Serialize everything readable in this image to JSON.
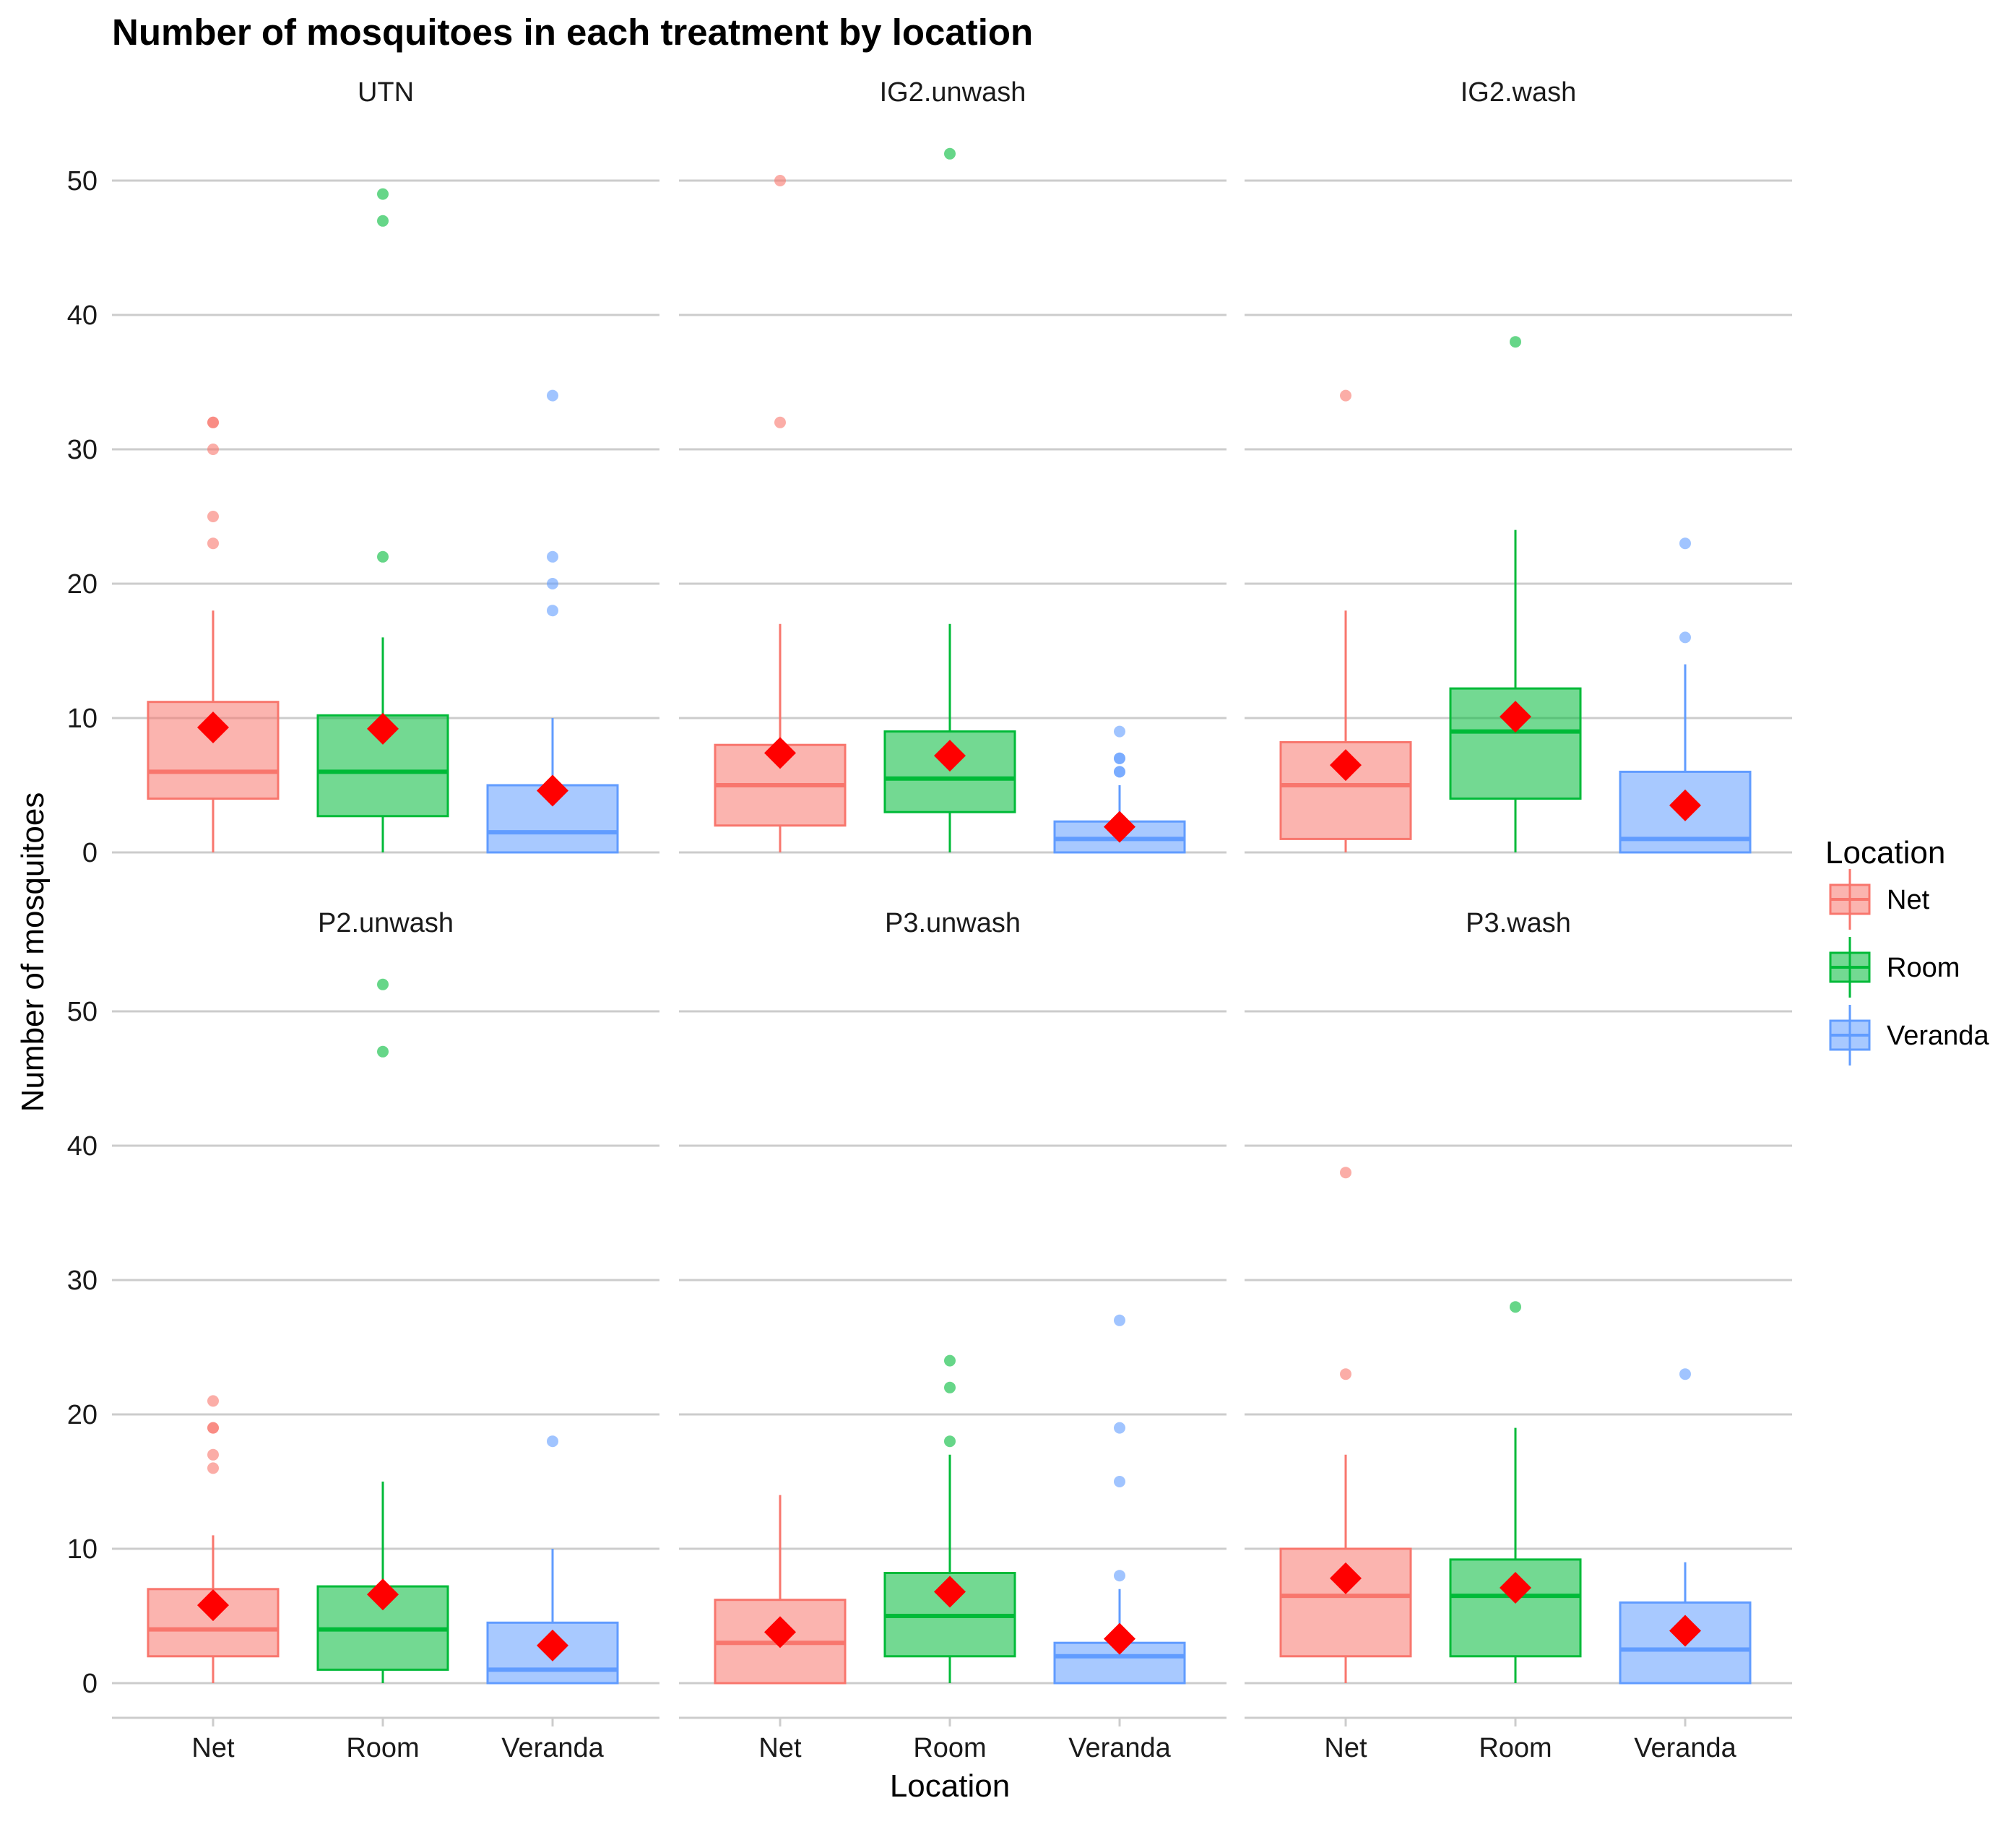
{
  "chart_data": {
    "type": "boxplot",
    "title": "Number of mosquitoes in each treatment by location",
    "xlabel": "Location",
    "ylabel": "Number of mosquitoes",
    "categories": [
      "Net",
      "Room",
      "Veranda"
    ],
    "ylim": [
      0,
      55
    ],
    "yticks": [
      0,
      10,
      20,
      30,
      40,
      50
    ],
    "grid": "horizontal",
    "legend": {
      "title": "Location",
      "position": "right",
      "entries": [
        {
          "name": "Net",
          "color": "#F8766D"
        },
        {
          "name": "Room",
          "color": "#00BA38"
        },
        {
          "name": "Veranda",
          "color": "#619CFF"
        }
      ]
    },
    "mean_marker": {
      "shape": "diamond",
      "color": "#FF0000"
    },
    "panels": [
      {
        "name": "UTN",
        "boxes": [
          {
            "location": "Net",
            "min": 0,
            "q1": 4,
            "median": 6,
            "q3": 11.2,
            "max": 18,
            "mean": 9.3,
            "outliers": [
              23,
              25,
              30,
              32,
              32
            ]
          },
          {
            "location": "Room",
            "min": 0,
            "q1": 2.7,
            "median": 6,
            "q3": 10.2,
            "max": 16,
            "mean": 9.2,
            "outliers": [
              22,
              47,
              49
            ]
          },
          {
            "location": "Veranda",
            "min": 0,
            "q1": 0,
            "median": 1.5,
            "q3": 5,
            "max": 10,
            "mean": 4.6,
            "outliers": [
              18,
              20,
              22,
              34
            ]
          }
        ]
      },
      {
        "name": "IG2.unwash",
        "boxes": [
          {
            "location": "Net",
            "min": 0,
            "q1": 2,
            "median": 5,
            "q3": 8,
            "max": 17,
            "mean": 7.4,
            "outliers": [
              32,
              50
            ]
          },
          {
            "location": "Room",
            "min": 0,
            "q1": 3,
            "median": 5.5,
            "q3": 9,
            "max": 17,
            "mean": 7.2,
            "outliers": [
              52
            ]
          },
          {
            "location": "Veranda",
            "min": 0,
            "q1": 0,
            "median": 1,
            "q3": 2.3,
            "max": 5,
            "mean": 1.9,
            "outliers": [
              6,
              6,
              7,
              7,
              9
            ]
          }
        ]
      },
      {
        "name": "IG2.wash",
        "boxes": [
          {
            "location": "Net",
            "min": 0,
            "q1": 1,
            "median": 5,
            "q3": 8.2,
            "max": 18,
            "mean": 6.5,
            "outliers": [
              34
            ]
          },
          {
            "location": "Room",
            "min": 0,
            "q1": 4,
            "median": 9,
            "q3": 12.2,
            "max": 24,
            "mean": 10.1,
            "outliers": [
              38
            ]
          },
          {
            "location": "Veranda",
            "min": 0,
            "q1": 0,
            "median": 1,
            "q3": 6,
            "max": 14,
            "mean": 3.5,
            "outliers": [
              16,
              23
            ]
          }
        ]
      },
      {
        "name": "P2.unwash",
        "boxes": [
          {
            "location": "Net",
            "min": 0,
            "q1": 2,
            "median": 4,
            "q3": 7,
            "max": 11,
            "mean": 5.8,
            "outliers": [
              16,
              17,
              19,
              19,
              21
            ]
          },
          {
            "location": "Room",
            "min": 0,
            "q1": 1,
            "median": 4,
            "q3": 7.2,
            "max": 15,
            "mean": 6.6,
            "outliers": [
              47,
              52
            ]
          },
          {
            "location": "Veranda",
            "min": 0,
            "q1": 0,
            "median": 1,
            "q3": 4.5,
            "max": 10,
            "mean": 2.8,
            "outliers": [
              18
            ]
          }
        ]
      },
      {
        "name": "P3.unwash",
        "boxes": [
          {
            "location": "Net",
            "min": 0,
            "q1": 0,
            "median": 3,
            "q3": 6.2,
            "max": 14,
            "mean": 3.8,
            "outliers": []
          },
          {
            "location": "Room",
            "min": 0,
            "q1": 2,
            "median": 5,
            "q3": 8.2,
            "max": 17,
            "mean": 6.8,
            "outliers": [
              18,
              22,
              24
            ]
          },
          {
            "location": "Veranda",
            "min": 0,
            "q1": 0,
            "median": 2,
            "q3": 3,
            "max": 7,
            "mean": 3.3,
            "outliers": [
              8,
              15,
              19,
              27
            ]
          }
        ]
      },
      {
        "name": "P3.wash",
        "boxes": [
          {
            "location": "Net",
            "min": 0,
            "q1": 2,
            "median": 6.5,
            "q3": 10,
            "max": 17,
            "mean": 7.8,
            "outliers": [
              23,
              38
            ]
          },
          {
            "location": "Room",
            "min": 0,
            "q1": 2,
            "median": 6.5,
            "q3": 9.2,
            "max": 19,
            "mean": 7.1,
            "outliers": [
              28
            ]
          },
          {
            "location": "Veranda",
            "min": 0,
            "q1": 0,
            "median": 2.5,
            "q3": 6,
            "max": 9,
            "mean": 3.9,
            "outliers": [
              23
            ]
          }
        ]
      }
    ]
  }
}
